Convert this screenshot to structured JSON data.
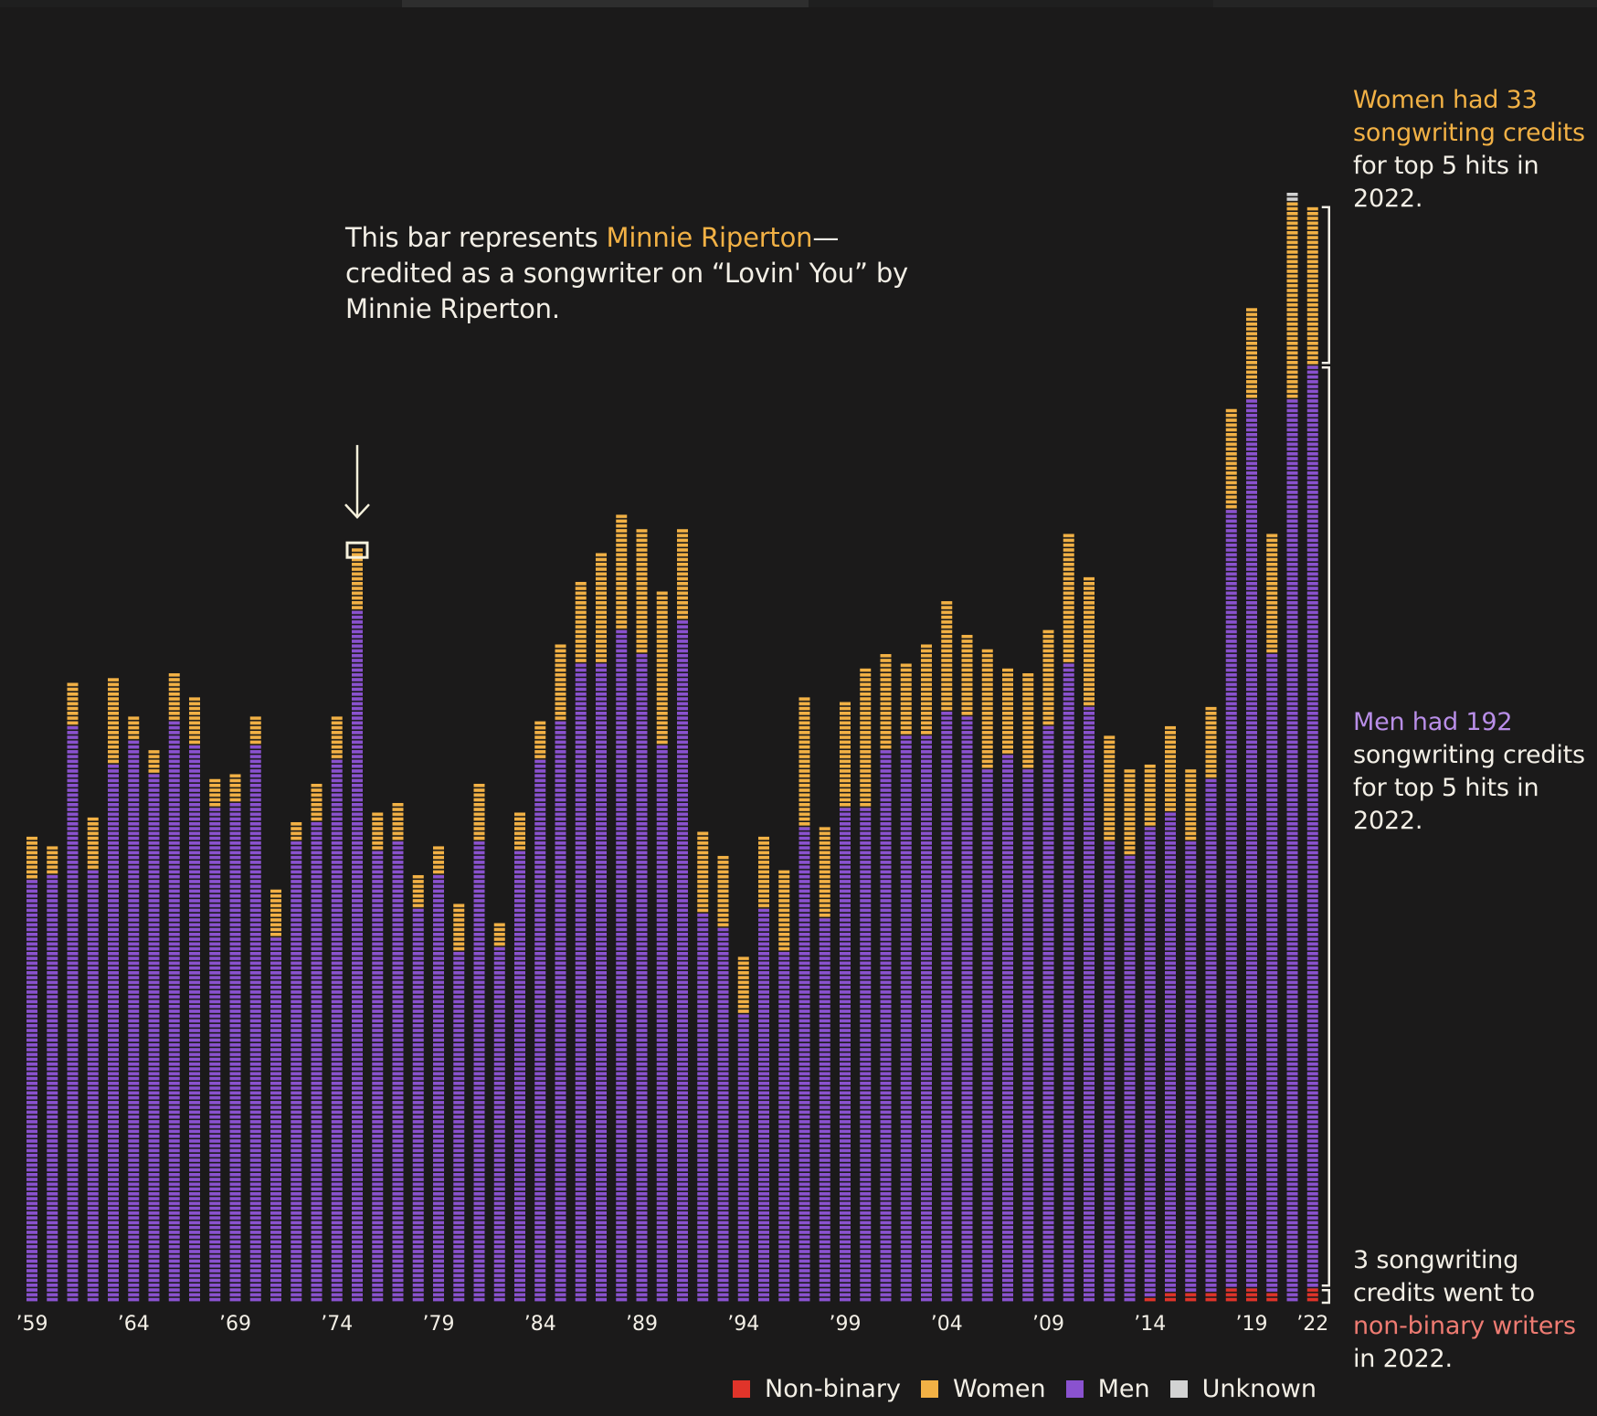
{
  "chart_data": {
    "type": "bar",
    "stacked": true,
    "x_tick_labels": [
      "’59",
      "’64",
      "’69",
      "’74",
      "’79",
      "’84",
      "’89",
      "’94",
      "’99",
      "’04",
      "’09",
      "’14",
      "’19",
      "’22"
    ],
    "years": [
      1959,
      1960,
      1961,
      1962,
      1963,
      1964,
      1965,
      1966,
      1967,
      1968,
      1969,
      1970,
      1971,
      1972,
      1973,
      1974,
      1975,
      1976,
      1977,
      1978,
      1979,
      1980,
      1981,
      1982,
      1983,
      1984,
      1985,
      1986,
      1987,
      1988,
      1989,
      1990,
      1991,
      1992,
      1993,
      1994,
      1995,
      1996,
      1997,
      1998,
      1999,
      2000,
      2001,
      2002,
      2003,
      2004,
      2005,
      2006,
      2007,
      2008,
      2009,
      2010,
      2011,
      2012,
      2013,
      2014,
      2015,
      2016,
      2017,
      2018,
      2019,
      2020,
      2021,
      2022
    ],
    "series": [
      {
        "name": "Non-binary",
        "color": "#e0342a",
        "values": [
          0,
          0,
          0,
          0,
          0,
          0,
          0,
          0,
          0,
          0,
          0,
          0,
          0,
          0,
          0,
          0,
          0,
          0,
          0,
          0,
          0,
          0,
          0,
          0,
          0,
          0,
          0,
          0,
          0,
          0,
          0,
          0,
          0,
          0,
          0,
          0,
          0,
          0,
          0,
          0,
          0,
          0,
          0,
          0,
          0,
          0,
          0,
          0,
          0,
          0,
          0,
          0,
          0,
          0,
          0,
          1,
          2,
          2,
          2,
          3,
          3,
          2,
          0,
          3
        ]
      },
      {
        "name": "Women",
        "color": "#f2b145",
        "values": [
          9,
          6,
          9,
          11,
          18,
          5,
          5,
          10,
          10,
          6,
          6,
          6,
          10,
          4,
          8,
          9,
          13,
          8,
          8,
          7,
          6,
          10,
          12,
          5,
          8,
          8,
          16,
          17,
          23,
          24,
          26,
          32,
          19,
          17,
          15,
          12,
          15,
          17,
          27,
          19,
          22,
          29,
          20,
          15,
          19,
          23,
          17,
          25,
          18,
          20,
          20,
          27,
          27,
          22,
          18,
          13,
          18,
          15,
          15,
          21,
          19,
          25,
          41,
          33
        ]
      },
      {
        "name": "Men",
        "color": "#8a52cf",
        "values": [
          88,
          89,
          120,
          90,
          112,
          117,
          110,
          121,
          116,
          103,
          104,
          116,
          76,
          96,
          100,
          113,
          144,
          94,
          96,
          82,
          89,
          73,
          96,
          74,
          94,
          113,
          121,
          133,
          133,
          140,
          135,
          116,
          142,
          81,
          78,
          60,
          82,
          73,
          99,
          80,
          103,
          103,
          115,
          118,
          118,
          123,
          122,
          111,
          114,
          111,
          120,
          133,
          124,
          96,
          93,
          98,
          100,
          94,
          107,
          162,
          185,
          133,
          188,
          192
        ]
      },
      {
        "name": "Unknown",
        "color": "#d2d2d2",
        "values": [
          0,
          0,
          0,
          0,
          0,
          0,
          0,
          0,
          0,
          0,
          0,
          0,
          0,
          0,
          0,
          0,
          0,
          0,
          0,
          0,
          0,
          0,
          0,
          0,
          0,
          0,
          0,
          0,
          0,
          0,
          0,
          0,
          0,
          0,
          0,
          0,
          0,
          0,
          0,
          0,
          0,
          0,
          0,
          0,
          0,
          0,
          0,
          0,
          0,
          0,
          0,
          0,
          0,
          0,
          0,
          0,
          0,
          0,
          0,
          0,
          0,
          0,
          2,
          0
        ]
      }
    ],
    "highlight": {
      "year": 1975,
      "series": "Women",
      "position": "top"
    }
  },
  "annotation": {
    "t1": "This bar represents ",
    "hl": "Minnie Riperton",
    "t2": "—credited as a songwriter on “Lovin' You” by Minnie Riperton."
  },
  "notes": {
    "women": {
      "hl": "Women had 33 songwriting credits",
      "rest": " for top 5 hits in 2022."
    },
    "men": {
      "hl": "Men had 192",
      "rest": " songwriting credits for top 5 hits in 2022."
    },
    "nb": {
      "t1": "3 songwriting credits went to ",
      "hl": "non-binary writers",
      "t2": " in 2022."
    }
  },
  "legend": [
    {
      "label": "Non-binary",
      "color": "#e0342a"
    },
    {
      "label": "Women",
      "color": "#f2b145"
    },
    {
      "label": "Men",
      "color": "#8a52cf"
    },
    {
      "label": "Unknown",
      "color": "#d2d2d2"
    }
  ]
}
